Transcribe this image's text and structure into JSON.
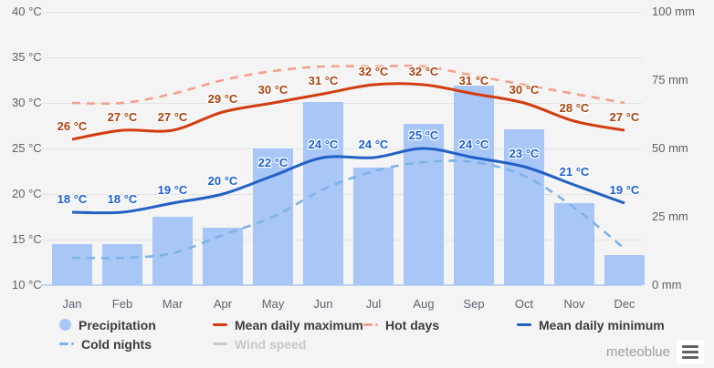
{
  "chart_data": {
    "type": "combo-bar-line",
    "months": [
      "Jan",
      "Feb",
      "Mar",
      "Apr",
      "May",
      "Jun",
      "Jul",
      "Aug",
      "Sep",
      "Oct",
      "Nov",
      "Dec"
    ],
    "series": [
      {
        "key": "precipitation",
        "name": "Precipitation",
        "type": "bar",
        "unit": "mm",
        "values": [
          15,
          15,
          25,
          21,
          50,
          67,
          43,
          59,
          73,
          57,
          30,
          11
        ]
      },
      {
        "key": "mean_daily_maximum",
        "name": "Mean daily maximum",
        "type": "line",
        "unit": "°C",
        "values": [
          26,
          27,
          27,
          29,
          30,
          31,
          32,
          32,
          31,
          30,
          28,
          27
        ],
        "labels": [
          "26 °C",
          "27 °C",
          "27 °C",
          "29 °C",
          "30 °C",
          "31 °C",
          "32 °C",
          "32 °C",
          "31 °C",
          "30 °C",
          "28 °C",
          "27 °C"
        ]
      },
      {
        "key": "hot_days",
        "name": "Hot days",
        "type": "dashed-line",
        "unit": "°C",
        "values": [
          30,
          30,
          31,
          32.5,
          33.5,
          34,
          34,
          34,
          33,
          32,
          31,
          30
        ]
      },
      {
        "key": "mean_daily_minimum",
        "name": "Mean daily minimum",
        "type": "line",
        "unit": "°C",
        "values": [
          18,
          18,
          19,
          20,
          22,
          24,
          24,
          25,
          24,
          23,
          21,
          19
        ],
        "labels": [
          "18 °C",
          "18 °C",
          "19 °C",
          "20 °C",
          "22 °C",
          "24 °C",
          "24 °C",
          "25 °C",
          "24 °C",
          "23 °C",
          "21 °C",
          "19 °C"
        ]
      },
      {
        "key": "cold_nights",
        "name": "Cold nights",
        "type": "dashed-line",
        "unit": "°C",
        "values": [
          13,
          13,
          13.5,
          15.5,
          17.5,
          20.5,
          22.5,
          23.5,
          23.5,
          22,
          18.5,
          14
        ]
      }
    ],
    "left_axis": {
      "title": "",
      "unit": "°C",
      "min": 10,
      "max": 40,
      "ticks": [
        {
          "label": "10 °C",
          "value": 10
        },
        {
          "label": "15 °C",
          "value": 15
        },
        {
          "label": "20 °C",
          "value": 20
        },
        {
          "label": "25 °C",
          "value": 25
        },
        {
          "label": "30 °C",
          "value": 30
        },
        {
          "label": "35 °C",
          "value": 35
        },
        {
          "label": "40 °C",
          "value": 40
        }
      ]
    },
    "right_axis": {
      "title": "",
      "unit": "mm",
      "min": 0,
      "max": 100,
      "ticks": [
        {
          "label": "0 mm",
          "value": 0
        },
        {
          "label": "25 mm",
          "value": 25
        },
        {
          "label": "50 mm",
          "value": 50
        },
        {
          "label": "75 mm",
          "value": 75
        },
        {
          "label": "100 mm",
          "value": 100
        }
      ]
    },
    "grid": true,
    "legend_position": "bottom"
  },
  "legend": [
    {
      "label": "Precipitation",
      "icon": "circle",
      "color": "#a8c7f7",
      "disabled": false
    },
    {
      "label": "Mean daily maximum",
      "icon": "line",
      "color": "#d23c0f",
      "disabled": false
    },
    {
      "label": "Hot days",
      "icon": "dashed",
      "color": "#f4a08e",
      "disabled": false
    },
    {
      "label": "Mean daily minimum",
      "icon": "line",
      "color": "#2260c5",
      "disabled": false
    },
    {
      "label": "Cold nights",
      "icon": "dashed",
      "color": "#7db2e8",
      "disabled": false
    },
    {
      "label": "Wind speed",
      "icon": "line",
      "color": "#c9c9c9",
      "disabled": true
    }
  ],
  "colors": {
    "background": "#f4f4f4",
    "bar": "#a8c7f7",
    "max_line": "#d23c0f",
    "hot_days_line": "#f4a08e",
    "min_line": "#2260c5",
    "cold_nights_line": "#7db2e8",
    "max_label": "#a84310",
    "min_label": "#1d5fd2",
    "gridline": "#e3e3e3",
    "baseline": "#bdd3f0"
  },
  "branding": {
    "logo_text": "meteoblue"
  }
}
